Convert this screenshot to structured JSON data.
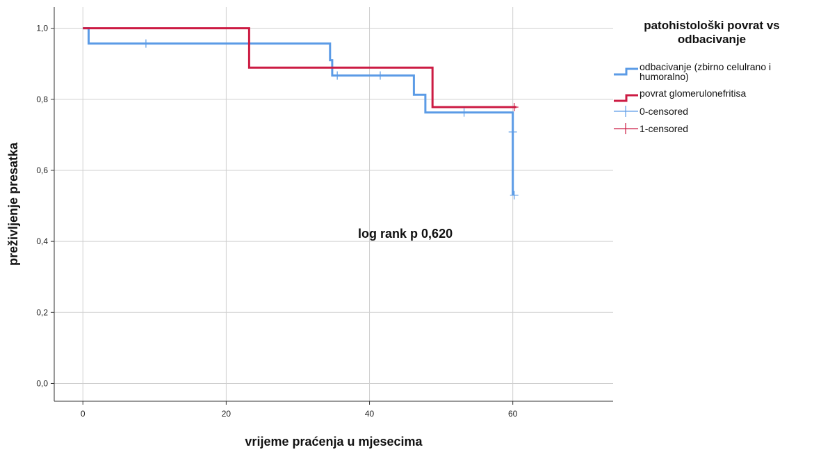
{
  "chart_data": {
    "type": "line",
    "xlabel": "vrijeme praćenja u mjesecima",
    "ylabel": "preživljenje presatka",
    "xlim": [
      -4,
      74
    ],
    "ylim": [
      -0.05,
      1.06
    ],
    "x_ticks": [
      0,
      20,
      40,
      60
    ],
    "x_tick_labels": [
      "0",
      "20",
      "40",
      "60"
    ],
    "y_ticks": [
      0.0,
      0.2,
      0.4,
      0.6,
      0.8,
      1.0
    ],
    "y_tick_labels": [
      "0,0",
      "0,2",
      "0,4",
      "0,6",
      "0,8",
      "1,0"
    ],
    "grid": true,
    "annotation": {
      "text": "log rank p 0,620",
      "x": 45,
      "y": 0.41
    },
    "legend": {
      "title": "patohistološki povrat vs odbacivanje",
      "title_lines": [
        "patohistološki povrat vs",
        "odbacivanje"
      ],
      "placement": "right",
      "entries": [
        {
          "label_lines": [
            "odbacivanje (zbirno celulrano i",
            "humoralno)"
          ],
          "kind": "line",
          "color": "#5b9be6"
        },
        {
          "label_lines": [
            "povrat glomerulonefritisa"
          ],
          "kind": "line",
          "color": "#cc1b43"
        },
        {
          "label_lines": [
            "0-censored"
          ],
          "kind": "censor",
          "color": "#5b9be6"
        },
        {
          "label_lines": [
            "1-censored"
          ],
          "kind": "censor",
          "color": "#cc1b43"
        }
      ]
    },
    "series": [
      {
        "name": "odbacivanje (zbirno celulrano i humoralno)",
        "color": "#5b9be6",
        "step_points": [
          [
            0,
            1.0
          ],
          [
            0.8,
            1.0
          ],
          [
            0.8,
            0.957
          ],
          [
            34.5,
            0.957
          ],
          [
            34.5,
            0.91
          ],
          [
            34.8,
            0.91
          ],
          [
            34.8,
            0.867
          ],
          [
            46.2,
            0.867
          ],
          [
            46.2,
            0.813
          ],
          [
            47.8,
            0.813
          ],
          [
            47.8,
            0.763
          ],
          [
            60.0,
            0.763
          ],
          [
            60.0,
            0.53
          ]
        ],
        "censored": [
          [
            8.8,
            0.957
          ],
          [
            35.5,
            0.867
          ],
          [
            41.5,
            0.867
          ],
          [
            53.2,
            0.763
          ],
          [
            60.0,
            0.708
          ],
          [
            60.2,
            0.53
          ]
        ]
      },
      {
        "name": "povrat glomerulonefritisa",
        "color": "#cc1b43",
        "step_points": [
          [
            0,
            1.0
          ],
          [
            23.2,
            1.0
          ],
          [
            23.2,
            0.889
          ],
          [
            48.8,
            0.889
          ],
          [
            48.8,
            0.778
          ],
          [
            60.5,
            0.778
          ]
        ],
        "censored": [
          [
            60.2,
            0.778
          ]
        ]
      }
    ]
  }
}
